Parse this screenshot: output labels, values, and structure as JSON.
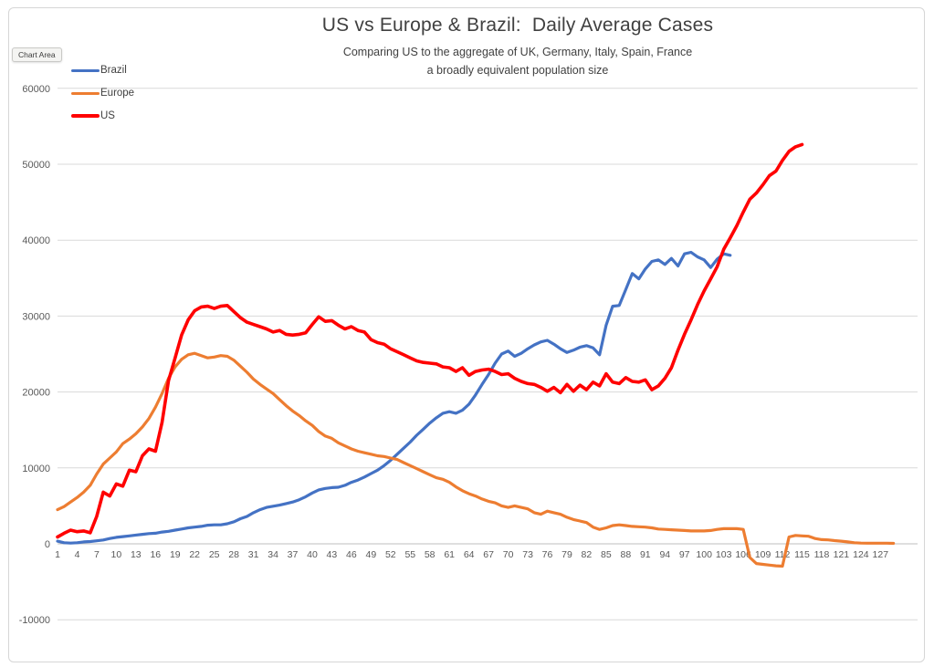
{
  "tooltip": {
    "label": "Chart Area"
  },
  "chart_data": {
    "type": "line",
    "title": "US vs Europe & Brazil:  Daily Average Cases",
    "subtitle1": "Comparing US to the aggregate of UK, Germany, Italy, Spain, France",
    "subtitle2": "a broadly equivalent population size",
    "xlabel": "",
    "ylabel": "",
    "ylim": [
      -10000,
      60000
    ],
    "y_tick_step": 10000,
    "grid": true,
    "legend_position": "top-left",
    "colors": {
      "grid": "#d9d9d9",
      "axis": "#bfbfbf",
      "tick": "#595959"
    },
    "x_tick_labels": [
      "1",
      "4",
      "7",
      "10",
      "13",
      "16",
      "19",
      "22",
      "25",
      "28",
      "31",
      "34",
      "37",
      "40",
      "43",
      "46",
      "49",
      "52",
      "55",
      "58",
      "61",
      "64",
      "67",
      "70",
      "73",
      "76",
      "79",
      "82",
      "85",
      "88",
      "91",
      "94",
      "97",
      "100",
      "103",
      "106",
      "109",
      "112",
      "115",
      "118",
      "121",
      "124",
      "127"
    ],
    "series": [
      {
        "name": "Brazil",
        "color": "#4472C4",
        "width": 3.2,
        "start_day": 1,
        "values": [
          350,
          150,
          100,
          150,
          250,
          300,
          400,
          500,
          700,
          850,
          950,
          1050,
          1150,
          1250,
          1350,
          1400,
          1550,
          1650,
          1800,
          1950,
          2100,
          2200,
          2300,
          2450,
          2500,
          2500,
          2650,
          2900,
          3300,
          3600,
          4100,
          4500,
          4800,
          4950,
          5100,
          5300,
          5500,
          5800,
          6200,
          6700,
          7100,
          7300,
          7400,
          7450,
          7700,
          8100,
          8400,
          8800,
          9250,
          9700,
          10300,
          11000,
          11800,
          12600,
          13400,
          14300,
          15100,
          15900,
          16600,
          17200,
          17400,
          17200,
          17600,
          18400,
          19600,
          21000,
          22300,
          23800,
          25000,
          25400,
          24700,
          25100,
          25700,
          26200,
          26600,
          26800,
          26300,
          25700,
          25200,
          25500,
          25900,
          26100,
          25800,
          24900,
          28800,
          31300,
          31400,
          33500,
          35600,
          34900,
          36200,
          37200,
          37400,
          36800,
          37600,
          36600,
          38200,
          38400,
          37800,
          37400,
          36400,
          37500,
          38200,
          38000
        ]
      },
      {
        "name": "Europe",
        "color": "#ED7D31",
        "width": 3.2,
        "start_day": 1,
        "values": [
          4500,
          4900,
          5500,
          6100,
          6800,
          7700,
          9200,
          10500,
          11300,
          12100,
          13200,
          13800,
          14500,
          15400,
          16500,
          18000,
          19800,
          21800,
          23300,
          24300,
          24900,
          25100,
          24800,
          24500,
          24600,
          24800,
          24700,
          24200,
          23400,
          22600,
          21700,
          21000,
          20400,
          19800,
          19000,
          18200,
          17500,
          16900,
          16200,
          15600,
          14800,
          14200,
          13900,
          13300,
          12900,
          12500,
          12200,
          12000,
          11800,
          11600,
          11500,
          11300,
          11100,
          10700,
          10300,
          9900,
          9500,
          9100,
          8700,
          8500,
          8100,
          7500,
          7000,
          6600,
          6300,
          5900,
          5600,
          5400,
          5000,
          4800,
          5000,
          4800,
          4600,
          4100,
          3900,
          4300,
          4100,
          3900,
          3500,
          3200,
          3000,
          2800,
          2200,
          1900,
          2100,
          2400,
          2500,
          2400,
          2300,
          2250,
          2200,
          2100,
          1950,
          1900,
          1850,
          1800,
          1750,
          1700,
          1700,
          1700,
          1750,
          1900,
          2000,
          2000,
          2000,
          1900,
          -1800,
          -2600,
          -2700,
          -2800,
          -2900,
          -2950,
          900,
          1100,
          1050,
          1000,
          700,
          550,
          520,
          420,
          350,
          250,
          150,
          100,
          80,
          80,
          80,
          80,
          60
        ]
      },
      {
        "name": "US",
        "color": "#FF0000",
        "width": 3.6,
        "start_day": 1,
        "values": [
          900,
          1400,
          1800,
          1600,
          1700,
          1450,
          3600,
          6800,
          6300,
          7900,
          7600,
          9700,
          9500,
          11600,
          12500,
          12200,
          16000,
          21500,
          24500,
          27500,
          29500,
          30700,
          31200,
          31300,
          31000,
          31300,
          31400,
          30600,
          29800,
          29200,
          28900,
          28600,
          28300,
          27900,
          28100,
          27600,
          27500,
          27600,
          27800,
          28900,
          29900,
          29300,
          29400,
          28800,
          28300,
          28600,
          28100,
          27900,
          26900,
          26500,
          26300,
          25700,
          25300,
          24900,
          24500,
          24100,
          23900,
          23800,
          23700,
          23300,
          23200,
          22700,
          23200,
          22200,
          22700,
          22900,
          23000,
          22700,
          22300,
          22400,
          21800,
          21400,
          21100,
          21000,
          20600,
          20100,
          20600,
          19900,
          21000,
          20100,
          20900,
          20300,
          21300,
          20800,
          22400,
          21300,
          21100,
          21900,
          21400,
          21300,
          21600,
          20300,
          20800,
          21800,
          23200,
          25500,
          27600,
          29500,
          31500,
          33300,
          34900,
          36500,
          38800,
          40300,
          41900,
          43700,
          45400,
          46200,
          47300,
          48500,
          49100,
          50500,
          51700,
          52300,
          52600
        ]
      }
    ]
  }
}
